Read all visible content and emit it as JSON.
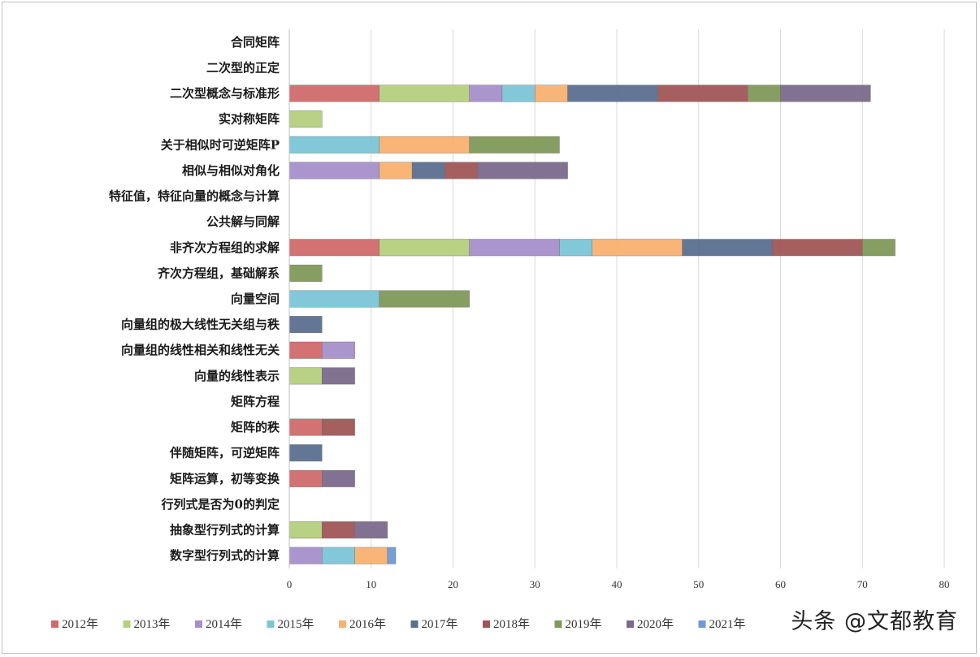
{
  "chart_data": {
    "type": "bar",
    "orientation": "horizontal",
    "stacked": true,
    "categories": [
      "合同矩阵",
      "二次型的正定",
      "二次型概念与标准形",
      "实对称矩阵",
      "关于相似时可逆矩阵P",
      "相似与相似对角化",
      "特征值，特征向量的概念与计算",
      "公共解与同解",
      "非齐次方程组的求解",
      "齐次方程组，基础解系",
      "向量空间",
      "向量组的极大线性无关组与秩",
      "向量组的线性相关和线性无关",
      "向量的线性表示",
      "矩阵方程",
      "矩阵的秩",
      "伴随矩阵，可逆矩阵",
      "矩阵运算，初等变换",
      "行列式是否为0的判定",
      "抽象型行列式的计算",
      "数字型行列式的计算"
    ],
    "series": [
      {
        "name": "2012年",
        "color": "#d06a6a",
        "values": [
          0,
          0,
          11,
          0,
          0,
          0,
          0,
          0,
          11,
          0,
          0,
          0,
          4,
          0,
          0,
          4,
          0,
          4,
          0,
          0,
          0
        ]
      },
      {
        "name": "2013年",
        "color": "#b5cf7e",
        "values": [
          0,
          0,
          11,
          4,
          0,
          0,
          0,
          0,
          11,
          0,
          0,
          0,
          0,
          4,
          0,
          0,
          0,
          0,
          0,
          4,
          0
        ]
      },
      {
        "name": "2014年",
        "color": "#a68fca",
        "values": [
          0,
          0,
          4,
          0,
          0,
          11,
          0,
          0,
          11,
          0,
          0,
          0,
          4,
          0,
          0,
          0,
          0,
          0,
          0,
          0,
          4
        ]
      },
      {
        "name": "2015年",
        "color": "#7cc5d6",
        "values": [
          0,
          0,
          4,
          0,
          11,
          0,
          0,
          0,
          4,
          0,
          11,
          0,
          0,
          0,
          0,
          0,
          0,
          0,
          0,
          0,
          4
        ]
      },
      {
        "name": "2016年",
        "color": "#f9b171",
        "values": [
          0,
          0,
          4,
          0,
          11,
          4,
          0,
          0,
          11,
          0,
          0,
          0,
          0,
          0,
          0,
          0,
          0,
          0,
          0,
          0,
          4
        ]
      },
      {
        "name": "2017年",
        "color": "#5b6f8f",
        "values": [
          0,
          0,
          11,
          0,
          0,
          4,
          0,
          0,
          11,
          0,
          0,
          4,
          0,
          0,
          0,
          0,
          4,
          0,
          0,
          0,
          0
        ]
      },
      {
        "name": "2018年",
        "color": "#a05656",
        "values": [
          0,
          0,
          11,
          0,
          0,
          4,
          0,
          0,
          11,
          0,
          0,
          0,
          0,
          0,
          0,
          4,
          0,
          0,
          0,
          4,
          0
        ]
      },
      {
        "name": "2019年",
        "color": "#7f9959",
        "values": [
          0,
          0,
          4,
          0,
          11,
          0,
          0,
          0,
          4,
          4,
          11,
          0,
          0,
          0,
          0,
          0,
          0,
          0,
          0,
          0,
          0
        ]
      },
      {
        "name": "2020年",
        "color": "#7b6a8c",
        "values": [
          0,
          0,
          11,
          0,
          0,
          11,
          0,
          0,
          0,
          0,
          0,
          0,
          0,
          4,
          0,
          0,
          0,
          4,
          0,
          4,
          0
        ]
      },
      {
        "name": "2021年",
        "color": "#6f9ad6",
        "values": [
          0,
          0,
          0,
          0,
          0,
          0,
          0,
          0,
          0,
          0,
          0,
          0,
          0,
          0,
          0,
          0,
          0,
          0,
          0,
          0,
          1
        ]
      }
    ],
    "xlim": [
      0,
      80
    ],
    "xticks": [
      0,
      10,
      20,
      30,
      40,
      50,
      60,
      70,
      80
    ],
    "grid": "vertical",
    "legend": "bottom"
  },
  "watermark": "头条 @文都教育"
}
